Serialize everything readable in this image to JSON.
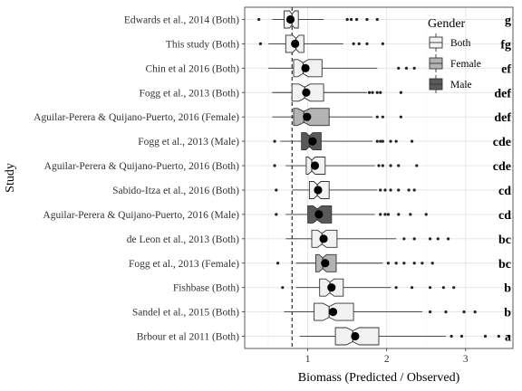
{
  "chart_data": {
    "type": "boxplot",
    "orientation": "horizontal",
    "xlabel": "Biomass (Predicted / Observed)",
    "ylabel": "Study",
    "xlim": [
      0.2,
      3.6
    ],
    "xticks": [
      1,
      2,
      3
    ],
    "reference_line": {
      "x": 0.8,
      "style": "dashed"
    },
    "grid": true,
    "legend": {
      "title": "Gender",
      "placement": "top-right-inside",
      "entries": [
        {
          "name": "Both",
          "color": "#f2f2f2"
        },
        {
          "name": "Female",
          "color": "#b3b3b3"
        },
        {
          "name": "Male",
          "color": "#595959"
        }
      ]
    },
    "series": [
      {
        "study": "Edwards et al., 2014 (Both)",
        "gender": "Both",
        "letters": "g",
        "whisker_low": 0.55,
        "q1": 0.7,
        "median": 0.8,
        "q3": 0.88,
        "whisker_high": 1.2,
        "mean": 0.78,
        "outliers": [
          0.38,
          1.5,
          1.55,
          1.62,
          1.75,
          1.88
        ]
      },
      {
        "study": "This study (Both)",
        "gender": "Both",
        "letters": "fg",
        "whisker_low": 0.5,
        "q1": 0.72,
        "median": 0.85,
        "q3": 0.95,
        "whisker_high": 1.45,
        "mean": 0.84,
        "outliers": [
          0.4,
          1.58,
          1.65,
          1.75,
          1.95
        ]
      },
      {
        "study": "Chin et al 2016 (Both)",
        "gender": "Both",
        "letters": "ef",
        "whisker_low": 0.5,
        "q1": 0.82,
        "median": 0.94,
        "q3": 1.18,
        "whisker_high": 1.88,
        "mean": 0.97,
        "outliers": [
          2.15,
          2.25,
          2.35
        ]
      },
      {
        "study": "Fogg et al., 2013 (Both)",
        "gender": "Both",
        "letters": "def",
        "whisker_low": 0.55,
        "q1": 0.8,
        "median": 0.96,
        "q3": 1.2,
        "whisker_high": 1.75,
        "mean": 0.98,
        "outliers": [
          1.78,
          1.82,
          1.88,
          1.92,
          2.18
        ]
      },
      {
        "study": "Aguilar-Perera & Quijano-Puerto, 2016 (Female)",
        "gender": "Female",
        "letters": "def",
        "whisker_low": 0.55,
        "q1": 0.82,
        "median": 0.95,
        "q3": 1.27,
        "whisker_high": 1.82,
        "mean": 0.99,
        "outliers": [
          1.88,
          1.95,
          2.18
        ]
      },
      {
        "study": "Fogg et al., 2013 (Male)",
        "gender": "Male",
        "letters": "cde",
        "whisker_low": 0.65,
        "q1": 0.92,
        "median": 1.02,
        "q3": 1.17,
        "whisker_high": 1.82,
        "mean": 1.06,
        "outliers": [
          0.58,
          1.88,
          1.92,
          1.95,
          2.05,
          2.12,
          2.32
        ]
      },
      {
        "study": "Aguilar-Perera & Quijano-Puerto, 2016 (Both)",
        "gender": "Both",
        "letters": "cde",
        "whisker_low": 0.72,
        "q1": 0.98,
        "median": 1.05,
        "q3": 1.22,
        "whisker_high": 1.85,
        "mean": 1.09,
        "outliers": [
          0.58,
          1.9,
          1.95,
          2.05,
          2.15,
          2.38
        ]
      },
      {
        "study": "Sabido-Itza et al., 2016 (Both)",
        "gender": "Both",
        "letters": "cd",
        "whisker_low": 0.8,
        "q1": 1.02,
        "median": 1.12,
        "q3": 1.27,
        "whisker_high": 1.88,
        "mean": 1.13,
        "outliers": [
          0.6,
          1.92,
          1.98,
          2.05,
          2.15,
          2.28,
          2.35
        ]
      },
      {
        "study": "Aguilar-Perera & Quijano-Puerto, 2016 (Male)",
        "gender": "Male",
        "letters": "cd",
        "whisker_low": 0.72,
        "q1": 1.0,
        "median": 1.12,
        "q3": 1.3,
        "whisker_high": 1.85,
        "mean": 1.14,
        "outliers": [
          0.6,
          1.92,
          1.98,
          2.02,
          2.15,
          2.3,
          2.5
        ]
      },
      {
        "study": "de Leon et al., 2013 (Both)",
        "gender": "Both",
        "letters": "bc",
        "whisker_low": 0.72,
        "q1": 1.05,
        "median": 1.18,
        "q3": 1.37,
        "whisker_high": 2.12,
        "mean": 1.2,
        "outliers": [
          2.22,
          2.35,
          2.55,
          2.65,
          2.78
        ]
      },
      {
        "study": "Fogg et al., 2013 (Female)",
        "gender": "Female",
        "letters": "bc",
        "whisker_low": 0.85,
        "q1": 1.1,
        "median": 1.19,
        "q3": 1.36,
        "whisker_high": 1.95,
        "mean": 1.22,
        "outliers": [
          0.62,
          2.02,
          2.12,
          2.22,
          2.35,
          2.45,
          2.58
        ]
      },
      {
        "study": "Fishbase (Both)",
        "gender": "Both",
        "letters": "b",
        "whisker_low": 0.85,
        "q1": 1.15,
        "median": 1.28,
        "q3": 1.45,
        "whisker_high": 2.05,
        "mean": 1.3,
        "outliers": [
          0.68,
          2.12,
          2.32,
          2.55,
          2.72,
          2.85
        ]
      },
      {
        "study": "Sandel et al., 2015 (Both)",
        "gender": "Both",
        "letters": "b",
        "whisker_low": 0.7,
        "q1": 1.08,
        "median": 1.27,
        "q3": 1.58,
        "whisker_high": 2.45,
        "mean": 1.32,
        "outliers": [
          2.55,
          2.75,
          2.98,
          3.12
        ]
      },
      {
        "study": "Brbour et al 2011 (Both)",
        "gender": "Both",
        "letters": "a",
        "whisker_low": 0.9,
        "q1": 1.35,
        "median": 1.57,
        "q3": 1.9,
        "whisker_high": 2.75,
        "mean": 1.6,
        "outliers": [
          2.82,
          2.95,
          3.25,
          3.42,
          3.55
        ]
      }
    ]
  }
}
